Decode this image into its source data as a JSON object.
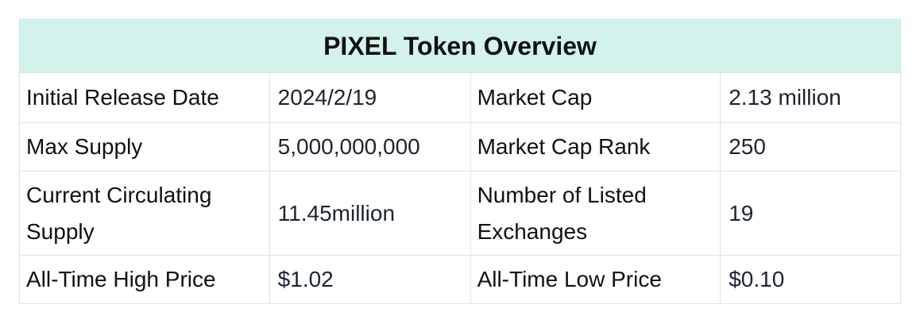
{
  "title": "PIXEL Token Overview",
  "rows": [
    {
      "k1": "Initial Release Date",
      "v1": "2024/2/19",
      "k2": "Market Cap",
      "v2": "2.13 million"
    },
    {
      "k1": "Max Supply",
      "v1": "5,000,000,000",
      "k2": "Market Cap Rank",
      "v2": "250"
    },
    {
      "k1": "Current Circulating Supply",
      "v1": "11.45million",
      "k2": "Number of Listed Exchanges",
      "v2": "19"
    },
    {
      "k1": "All-Time High Price",
      "v1": "$1.02",
      "k2": "All-Time Low Price",
      "v2": "$0.10"
    }
  ]
}
